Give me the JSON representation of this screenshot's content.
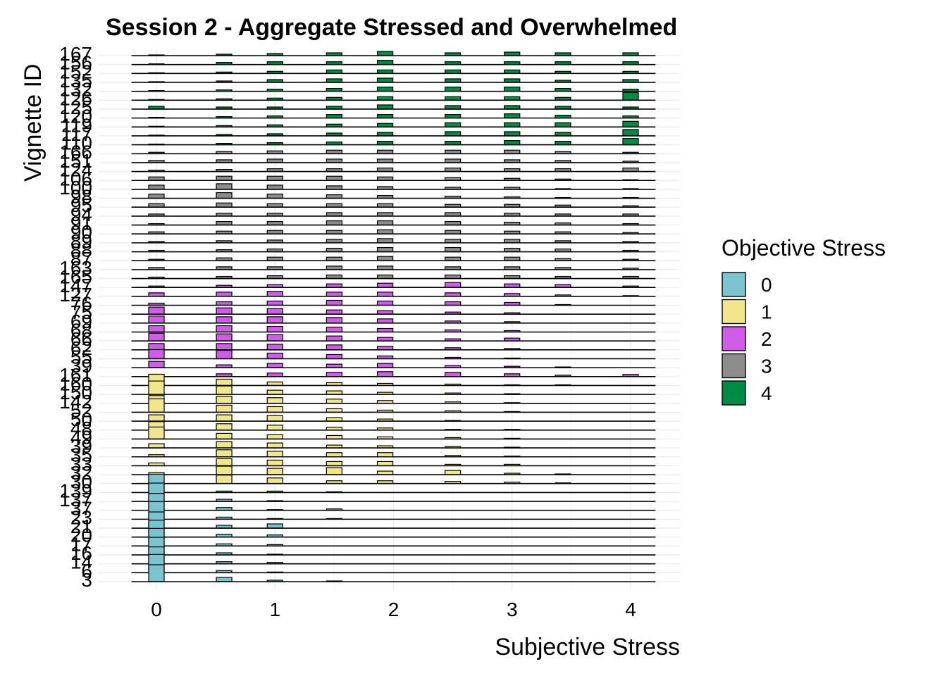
{
  "chart_data": {
    "type": "ridgeline-histogram",
    "title": "Session 2 - Aggregate Stressed and Overwhelmed",
    "xlabel": "Subjective Stress",
    "ylabel": "Vignette ID",
    "x_ticks": [
      "0",
      "1",
      "2",
      "3",
      "4"
    ],
    "xlim": [
      -0.45,
      4.45
    ],
    "x_bins": [
      0,
      0.571,
      1,
      1.5,
      1.929,
      2.5,
      3,
      3.429,
      4
    ],
    "grid": true,
    "legend": {
      "title": "Objective Stress",
      "position": "right",
      "entries": [
        {
          "label": "0",
          "color": "#7bc4cf"
        },
        {
          "label": "1",
          "color": "#f0e68c"
        },
        {
          "label": "2",
          "color": "#cf5de8"
        },
        {
          "label": "3",
          "color": "#8c8c8c"
        },
        {
          "label": "4",
          "color": "#008b45"
        }
      ]
    },
    "series": [
      {
        "id": "3",
        "group": 0,
        "values": [
          2.4,
          0.6,
          0.2,
          0.1,
          0,
          0,
          0,
          0,
          0
        ]
      },
      {
        "id": "6",
        "group": 0,
        "values": [
          2.6,
          0.3,
          0.1,
          0,
          0,
          0,
          0,
          0,
          0
        ]
      },
      {
        "id": "14",
        "group": 0,
        "values": [
          2.4,
          0.3,
          0.2,
          0,
          0,
          0,
          0,
          0,
          0
        ]
      },
      {
        "id": "16",
        "group": 0,
        "values": [
          2.5,
          0.3,
          0.1,
          0,
          0,
          0,
          0,
          0,
          0
        ]
      },
      {
        "id": "17",
        "group": 0,
        "values": [
          2.5,
          0.3,
          0.2,
          0,
          0,
          0,
          0,
          0,
          0
        ]
      },
      {
        "id": "20",
        "group": 0,
        "values": [
          2.4,
          0.4,
          0.3,
          0,
          0,
          0,
          0,
          0,
          0
        ]
      },
      {
        "id": "21",
        "group": 0,
        "values": [
          2.3,
          0.4,
          0.6,
          0,
          0,
          0,
          0,
          0,
          0
        ]
      },
      {
        "id": "23",
        "group": 0,
        "values": [
          2.5,
          0.3,
          0.1,
          0.1,
          0,
          0,
          0,
          0,
          0
        ]
      },
      {
        "id": "37",
        "group": 0,
        "values": [
          2.4,
          0.4,
          0.1,
          0.2,
          0,
          0,
          0,
          0,
          0
        ]
      },
      {
        "id": "137",
        "group": 0,
        "values": [
          2.6,
          0.3,
          0.1,
          0,
          0,
          0,
          0,
          0,
          0
        ]
      },
      {
        "id": "139",
        "group": 0,
        "values": [
          2.6,
          0.2,
          0.2,
          0.1,
          0,
          0,
          0,
          0,
          0
        ]
      },
      {
        "id": "30",
        "group": 1,
        "values": [
          0.5,
          1.2,
          0.8,
          0.4,
          0.4,
          0.3,
          0.2,
          0.1,
          0
        ]
      },
      {
        "id": "32",
        "group": 1,
        "values": [
          0.3,
          1.2,
          0.9,
          1.0,
          0.5,
          0.6,
          0.2,
          0.1,
          0
        ]
      },
      {
        "id": "33",
        "group": 1,
        "values": [
          0.4,
          1.0,
          0.8,
          0.6,
          0.6,
          0.2,
          0.2,
          0,
          0
        ]
      },
      {
        "id": "35",
        "group": 1,
        "values": [
          0.3,
          1.0,
          0.8,
          0.6,
          0.6,
          0.2,
          0.1,
          0,
          0
        ]
      },
      {
        "id": "39",
        "group": 1,
        "values": [
          0.6,
          0.9,
          0.7,
          0.4,
          0.3,
          0.2,
          0.1,
          0,
          0
        ]
      },
      {
        "id": "49",
        "group": 1,
        "values": [
          1.7,
          0.8,
          0.6,
          0.5,
          0.3,
          0.2,
          0.1,
          0,
          0
        ]
      },
      {
        "id": "48",
        "group": 1,
        "values": [
          1.2,
          0.9,
          0.7,
          0.4,
          0.3,
          0.1,
          0.1,
          0,
          0
        ]
      },
      {
        "id": "50",
        "group": 1,
        "values": [
          0.9,
          0.9,
          0.8,
          0.5,
          0.3,
          0.1,
          0,
          0,
          0
        ]
      },
      {
        "id": "52",
        "group": 1,
        "values": [
          1.9,
          1.0,
          0.8,
          0.5,
          0.3,
          0.2,
          0.1,
          0,
          0
        ]
      },
      {
        "id": "142",
        "group": 1,
        "values": [
          1.1,
          1.0,
          0.8,
          0.6,
          0.4,
          0.2,
          0.1,
          0,
          0
        ]
      },
      {
        "id": "150",
        "group": 1,
        "values": [
          1.9,
          1.2,
          0.6,
          0.5,
          0.3,
          0.2,
          0.1,
          0,
          0
        ]
      },
      {
        "id": "160",
        "group": 1,
        "values": [
          1.6,
          0.9,
          0.5,
          0.4,
          0.3,
          0.2,
          0.1,
          0.1,
          0
        ]
      },
      {
        "id": "161",
        "group": 2,
        "values": [
          0.3,
          0.4,
          0.5,
          0.6,
          0.7,
          0.6,
          0.4,
          0.2,
          0.3
        ]
      },
      {
        "id": "39",
        "group": 2,
        "values": [
          0.9,
          0.4,
          0.6,
          0.5,
          0.6,
          0.3,
          0.2,
          0.1,
          0
        ]
      },
      {
        "id": "55",
        "group": 2,
        "values": [
          1.3,
          1.2,
          0.8,
          0.6,
          0.4,
          0.2,
          0.1,
          0,
          0
        ]
      },
      {
        "id": "62",
        "group": 2,
        "values": [
          0.9,
          0.9,
          0.8,
          0.7,
          0.5,
          0.3,
          0.2,
          0,
          0
        ]
      },
      {
        "id": "66",
        "group": 2,
        "values": [
          1.1,
          1.0,
          0.9,
          0.7,
          0.5,
          0.3,
          0.4,
          0,
          0
        ]
      },
      {
        "id": "68",
        "group": 2,
        "values": [
          0.9,
          0.9,
          0.8,
          0.7,
          0.5,
          0.3,
          0.2,
          0,
          0
        ]
      },
      {
        "id": "69",
        "group": 2,
        "values": [
          1.0,
          0.9,
          0.9,
          0.8,
          0.6,
          0.3,
          0.2,
          0,
          0
        ]
      },
      {
        "id": "75",
        "group": 2,
        "values": [
          1.0,
          0.9,
          0.8,
          0.6,
          0.5,
          0.3,
          0.2,
          0,
          0
        ]
      },
      {
        "id": "76",
        "group": 2,
        "values": [
          0.3,
          0.5,
          0.6,
          0.7,
          0.6,
          0.5,
          0.4,
          0.1,
          0
        ]
      },
      {
        "id": "127",
        "group": 2,
        "values": [
          0.5,
          0.6,
          0.7,
          0.6,
          0.6,
          0.5,
          0.4,
          0.2,
          0.1
        ]
      },
      {
        "id": "147",
        "group": 2,
        "values": [
          0.2,
          0.3,
          0.4,
          0.5,
          0.6,
          0.7,
          0.5,
          0.4,
          0.2
        ]
      },
      {
        "id": "165",
        "group": 3,
        "values": [
          0.2,
          0.3,
          0.4,
          0.5,
          0.5,
          0.5,
          0.4,
          0.3,
          0.3
        ]
      },
      {
        "id": "163",
        "group": 3,
        "values": [
          0.3,
          0.4,
          0.4,
          0.5,
          0.5,
          0.4,
          0.4,
          0.3,
          0.2
        ]
      },
      {
        "id": "87",
        "group": 3,
        "values": [
          0.2,
          0.4,
          0.5,
          0.5,
          0.6,
          0.5,
          0.5,
          0.3,
          0.2
        ]
      },
      {
        "id": "88",
        "group": 3,
        "values": [
          0.2,
          0.3,
          0.4,
          0.5,
          0.6,
          0.6,
          0.5,
          0.4,
          0.2
        ]
      },
      {
        "id": "89",
        "group": 3,
        "values": [
          0.2,
          0.3,
          0.4,
          0.5,
          0.6,
          0.5,
          0.5,
          0.3,
          0.2
        ]
      },
      {
        "id": "90",
        "group": 3,
        "values": [
          0.3,
          0.4,
          0.5,
          0.5,
          0.6,
          0.5,
          0.4,
          0.3,
          0.2
        ]
      },
      {
        "id": "91",
        "group": 3,
        "values": [
          0.2,
          0.5,
          0.5,
          0.6,
          0.6,
          0.5,
          0.4,
          0.3,
          0.2
        ]
      },
      {
        "id": "94",
        "group": 3,
        "values": [
          0.3,
          0.4,
          0.4,
          0.5,
          0.5,
          0.5,
          0.4,
          0.3,
          0.3
        ]
      },
      {
        "id": "95",
        "group": 3,
        "values": [
          0.5,
          0.6,
          0.5,
          0.5,
          0.5,
          0.4,
          0.4,
          0.3,
          0.2
        ]
      },
      {
        "id": "98",
        "group": 3,
        "values": [
          0.6,
          0.8,
          0.6,
          0.5,
          0.4,
          0.3,
          0.2,
          0.1,
          0.1
        ]
      },
      {
        "id": "100",
        "group": 3,
        "values": [
          0.6,
          0.8,
          0.6,
          0.5,
          0.4,
          0.3,
          0.3,
          0.1,
          0.1
        ]
      },
      {
        "id": "106",
        "group": 3,
        "values": [
          0.5,
          0.6,
          0.6,
          0.6,
          0.5,
          0.4,
          0.3,
          0.2,
          0.1
        ]
      },
      {
        "id": "124",
        "group": 3,
        "values": [
          0.2,
          0.3,
          0.4,
          0.4,
          0.5,
          0.5,
          0.4,
          0.4,
          0.5
        ]
      },
      {
        "id": "151",
        "group": 3,
        "values": [
          0.3,
          0.4,
          0.5,
          0.5,
          0.5,
          0.5,
          0.4,
          0.3,
          0.2
        ]
      },
      {
        "id": "166",
        "group": 3,
        "values": [
          0.2,
          0.3,
          0.4,
          0.5,
          0.5,
          0.5,
          0.5,
          0.3,
          0.2
        ]
      },
      {
        "id": "110",
        "group": 4,
        "values": [
          0.1,
          0.2,
          0.3,
          0.4,
          0.5,
          0.5,
          0.6,
          0.5,
          0.9
        ]
      },
      {
        "id": "117",
        "group": 4,
        "values": [
          0.1,
          0.2,
          0.3,
          0.4,
          0.5,
          0.6,
          0.6,
          0.5,
          0.9
        ]
      },
      {
        "id": "119",
        "group": 4,
        "values": [
          0.1,
          0.2,
          0.3,
          0.4,
          0.5,
          0.6,
          0.6,
          0.6,
          0.8
        ]
      },
      {
        "id": "120",
        "group": 4,
        "values": [
          0.1,
          0.2,
          0.3,
          0.5,
          0.5,
          0.5,
          0.6,
          0.4,
          0.3
        ]
      },
      {
        "id": "125",
        "group": 4,
        "values": [
          0.4,
          0.3,
          0.3,
          0.4,
          0.6,
          0.5,
          0.5,
          0.4,
          0.3
        ]
      },
      {
        "id": "126",
        "group": 4,
        "values": [
          0.1,
          0.2,
          0.3,
          0.4,
          0.5,
          0.5,
          0.5,
          0.4,
          1.1
        ]
      },
      {
        "id": "132",
        "group": 4,
        "values": [
          0.1,
          0.2,
          0.3,
          0.4,
          0.6,
          0.6,
          0.6,
          0.4,
          0.3
        ]
      },
      {
        "id": "135",
        "group": 4,
        "values": [
          0.1,
          0.2,
          0.4,
          0.5,
          0.6,
          0.5,
          0.5,
          0.3,
          0.4
        ]
      },
      {
        "id": "152",
        "group": 4,
        "values": [
          0.1,
          0.2,
          0.3,
          0.5,
          0.5,
          0.5,
          0.5,
          0.3,
          0.3
        ]
      },
      {
        "id": "156",
        "group": 4,
        "values": [
          0.1,
          0.3,
          0.4,
          0.4,
          0.6,
          0.4,
          0.4,
          0.4,
          0.4
        ]
      },
      {
        "id": "167",
        "group": 4,
        "values": [
          0.1,
          0.2,
          0.3,
          0.4,
          0.6,
          0.4,
          0.5,
          0.4,
          0.4
        ]
      }
    ]
  }
}
